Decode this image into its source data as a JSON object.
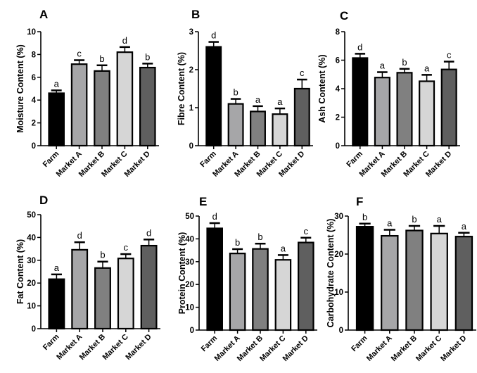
{
  "figure": {
    "categories": [
      "Farm",
      "Market A",
      "Market B",
      "Market C",
      "Market D"
    ],
    "bar_colors": [
      "#000000",
      "#a6a6a8",
      "#808080",
      "#d6d6d6",
      "#5f5f5f"
    ]
  },
  "chart_data": [
    {
      "type": "bar",
      "panel": "A",
      "title": "A",
      "xlabel": "",
      "ylabel": "Moisture Content (%)",
      "categories": [
        "Farm",
        "Market A",
        "Market B",
        "Market C",
        "Market D"
      ],
      "values": [
        4.6,
        7.15,
        6.55,
        8.2,
        6.85
      ],
      "errors": [
        0.25,
        0.35,
        0.5,
        0.45,
        0.35
      ],
      "significance": [
        "a",
        "c",
        "b",
        "d",
        "b"
      ],
      "ylim": [
        0,
        10
      ],
      "yticks": [
        0,
        2,
        4,
        6,
        8,
        10
      ],
      "grid": false
    },
    {
      "type": "bar",
      "panel": "B",
      "title": "B",
      "xlabel": "",
      "ylabel": "Fibre Content (%)",
      "categories": [
        "Farm",
        "Market A",
        "Market B",
        "Market C",
        "Market D"
      ],
      "values": [
        2.6,
        1.1,
        0.9,
        0.83,
        1.5
      ],
      "errors": [
        0.13,
        0.13,
        0.14,
        0.15,
        0.24
      ],
      "significance": [
        "d",
        "b",
        "a",
        "a",
        "c"
      ],
      "ylim": [
        0,
        3
      ],
      "yticks": [
        0,
        1,
        2,
        3
      ],
      "grid": false
    },
    {
      "type": "bar",
      "panel": "C",
      "title": "C",
      "xlabel": "",
      "ylabel": "Ash Content (%)",
      "categories": [
        "Farm",
        "Market A",
        "Market B",
        "Market C",
        "Market D"
      ],
      "values": [
        6.15,
        4.78,
        5.12,
        4.52,
        5.35
      ],
      "errors": [
        0.3,
        0.38,
        0.27,
        0.45,
        0.55
      ],
      "significance": [
        "d",
        "a",
        "b",
        "a",
        "c"
      ],
      "ylim": [
        0,
        8
      ],
      "yticks": [
        0,
        2,
        4,
        6,
        8
      ],
      "grid": false
    },
    {
      "type": "bar",
      "panel": "D",
      "title": "D",
      "xlabel": "",
      "ylabel": "Fat Content (%)",
      "categories": [
        "Farm",
        "Market A",
        "Market B",
        "Market C",
        "Market D"
      ],
      "values": [
        21.7,
        34.6,
        26.6,
        30.8,
        36.4
      ],
      "errors": [
        2.1,
        3.3,
        2.8,
        1.9,
        2.7
      ],
      "significance": [
        "a",
        "d",
        "b",
        "c",
        "d"
      ],
      "ylim": [
        0,
        50
      ],
      "yticks": [
        0,
        10,
        20,
        30,
        40,
        50
      ],
      "grid": false
    },
    {
      "type": "bar",
      "panel": "E",
      "title": "E",
      "xlabel": "",
      "ylabel": "Protein Content (%)",
      "categories": [
        "Farm",
        "Market A",
        "Market B",
        "Market C",
        "Market D"
      ],
      "values": [
        44.6,
        33.6,
        35.6,
        30.8,
        38.4
      ],
      "errors": [
        2.3,
        1.9,
        2.3,
        2.1,
        2.1
      ],
      "significance": [
        "d",
        "b",
        "b",
        "a",
        "c"
      ],
      "ylim": [
        0,
        50
      ],
      "yticks": [
        0,
        10,
        20,
        30,
        40,
        50
      ],
      "grid": false
    },
    {
      "type": "bar",
      "panel": "F",
      "title": "F",
      "xlabel": "",
      "ylabel": "Carbohydrate Content (%)",
      "categories": [
        "Farm",
        "Market A",
        "Market B",
        "Market C",
        "Market D"
      ],
      "values": [
        27.2,
        24.8,
        26.2,
        25.4,
        24.6
      ],
      "errors": [
        0.8,
        1.6,
        1.2,
        2.0,
        1.0
      ],
      "significance": [
        "b",
        "a",
        "b",
        "a",
        "a"
      ],
      "ylim": [
        0,
        30
      ],
      "yticks": [
        0,
        10,
        20,
        30
      ],
      "grid": false
    }
  ]
}
